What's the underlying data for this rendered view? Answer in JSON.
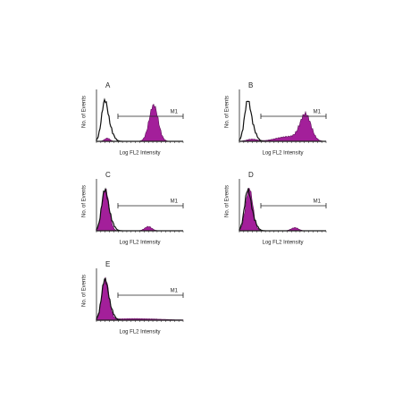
{
  "panels": [
    {
      "label": "A",
      "y_label": "No. of Events",
      "x_label": "Log FL2 Intensity",
      "marker": "M1"
    },
    {
      "label": "B",
      "y_label": "No. of Events",
      "x_label": "Log FL2 Intensity",
      "marker": "M1"
    },
    {
      "label": "C",
      "y_label": "No. of Events",
      "x_label": "Log FL2 Intensity",
      "marker": "M1"
    },
    {
      "label": "D",
      "y_label": "No. of Events",
      "x_label": "Log FL2 Intensity",
      "marker": "M1"
    },
    {
      "label": "E",
      "y_label": "No. of Events",
      "x_label": "Log FL2 Intensity",
      "marker": "M1"
    }
  ]
}
